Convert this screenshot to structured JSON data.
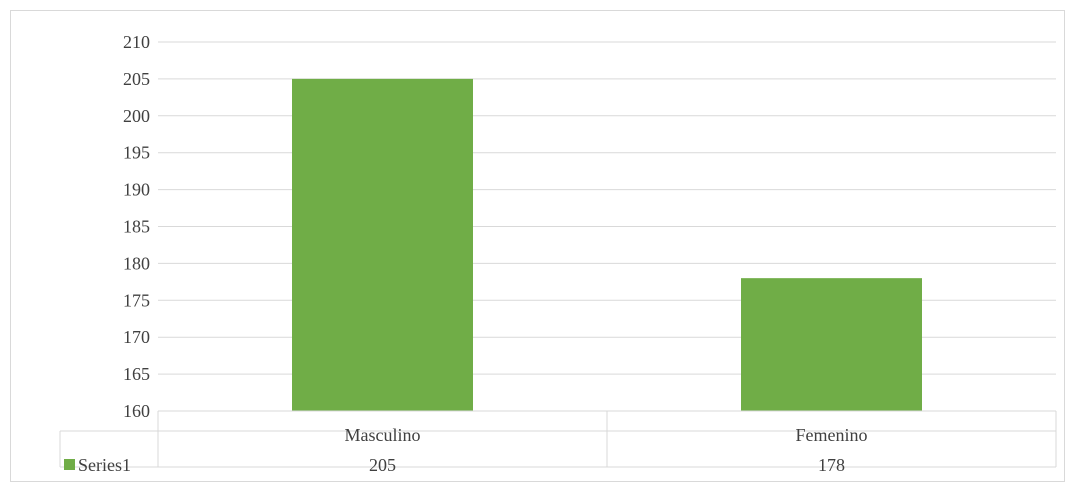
{
  "chart_data": {
    "type": "bar",
    "categories": [
      "Masculino",
      "Femenino"
    ],
    "series": [
      {
        "name": "Series1",
        "values": [
          205,
          178
        ],
        "color": "#70ad47"
      }
    ],
    "ylim": [
      160,
      210
    ],
    "yticks": [
      160,
      165,
      170,
      175,
      180,
      185,
      190,
      195,
      200,
      205,
      210
    ],
    "grid": true,
    "data_table": true,
    "title": "",
    "xlabel": "",
    "ylabel": ""
  }
}
